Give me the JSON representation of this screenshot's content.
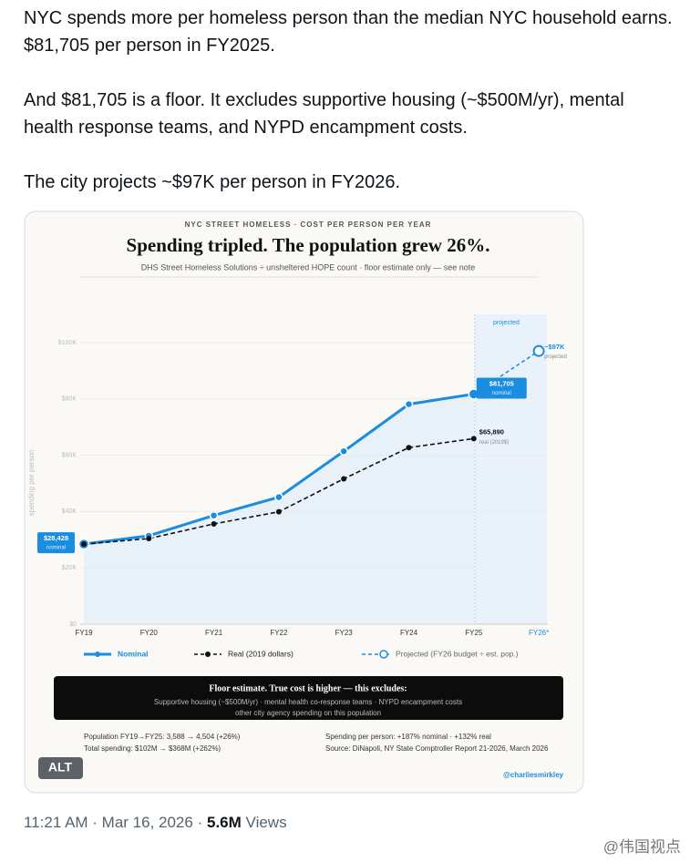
{
  "tweet": {
    "paragraphs": [
      "NYC spends more per homeless person than the median NYC household earns. $81,705 per person in FY2025.",
      "And $81,705 is a floor. It excludes supportive housing (~$500M/yr), mental health response teams, and NYPD encampment costs.",
      "The city projects ~$97K per person in FY2026."
    ],
    "alt_badge": "ALT",
    "time": "11:21 AM · Mar 16, 2026",
    "separator": "·",
    "views_count": "5.6M",
    "views_label": "Views",
    "watermark": "@伟国视点"
  },
  "chart_data": {
    "type": "line",
    "header": "NYC STREET HOMELESS · COST PER PERSON PER YEAR",
    "title": "Spending tripled. The population grew 26%.",
    "subtitle": "DHS Street Homeless Solutions ÷ unsheltered HOPE count · floor estimate only — see note",
    "y_label": "spending per person",
    "categories": [
      "FY19",
      "FY20",
      "FY21",
      "FY22",
      "FY23",
      "FY24",
      "FY25",
      "FY26*"
    ],
    "ylim": [
      0,
      110000
    ],
    "yticks": [
      {
        "value": 0,
        "label": "$0"
      },
      {
        "value": 20000,
        "label": "$20K"
      },
      {
        "value": 40000,
        "label": "$40K"
      },
      {
        "value": 60000,
        "label": "$60K"
      },
      {
        "value": 80000,
        "label": "$80K"
      },
      {
        "value": 100000,
        "label": "$100K"
      }
    ],
    "grid": true,
    "projected_band_label": "projected",
    "series": [
      {
        "name": "Nominal",
        "color": "#1a8de0",
        "style": "solid",
        "values": [
          28428,
          31400,
          38600,
          45100,
          61400,
          78100,
          81705,
          null
        ],
        "value_labels": [
          "$28,428",
          null,
          null,
          null,
          null,
          null,
          "$81,705",
          null
        ],
        "value_notes": [
          "nominal",
          null,
          null,
          null,
          null,
          null,
          "nominal",
          null
        ]
      },
      {
        "name": "Real (2019 dollars)",
        "color": "#111111",
        "style": "dashed",
        "values": [
          28428,
          30400,
          35600,
          39900,
          51600,
          62700,
          65890,
          null
        ],
        "value_labels": [
          null,
          null,
          null,
          null,
          null,
          null,
          "$65,890",
          null
        ],
        "value_notes": [
          null,
          null,
          null,
          null,
          null,
          null,
          "real (2019$)",
          null
        ]
      },
      {
        "name": "Projected (FY26 budget ÷ est. pop.)",
        "color": "#1a8de0",
        "style": "projected",
        "values": [
          null,
          null,
          null,
          null,
          null,
          null,
          81705,
          97000
        ],
        "value_labels": [
          null,
          null,
          null,
          null,
          null,
          null,
          null,
          "~$97K"
        ],
        "value_notes": [
          null,
          null,
          null,
          null,
          null,
          null,
          null,
          "projected"
        ]
      }
    ],
    "note_box": {
      "title": "Floor estimate. True cost is higher — this excludes:",
      "lines": [
        "Supportive housing (~$500M/yr) · mental health co-response teams · NYPD encampment costs",
        "other city agency spending on this population"
      ]
    },
    "footer_left": [
      "Population FY19→FY25: 3,588 → 4,504 (+26%)",
      "Total spending: $102M → $368M (+262%)"
    ],
    "footer_right": [
      "Spending per person: +187% nominal · +132% real",
      "Source: DiNapoli, NY State Comptroller Report 21-2026, March 2026"
    ],
    "credit": "@charliesmirkley"
  }
}
